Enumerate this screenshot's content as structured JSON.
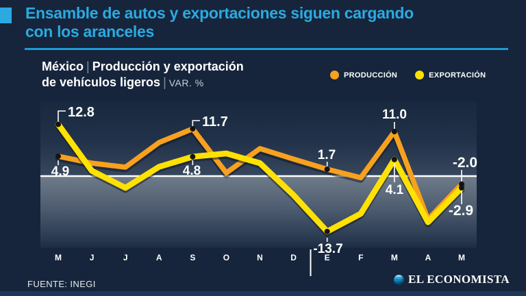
{
  "header": {
    "title_line1": "Ensamble de autos y exportaciones siguen cargando",
    "title_line2": "con los aranceles",
    "accent_color": "#2BAAE2"
  },
  "subtitle": {
    "region": "México",
    "separator": "|",
    "topic_line1": "Producción y exportación",
    "topic_line2": "de vehículos ligeros",
    "unit": "VAR. %"
  },
  "legend": [
    {
      "label": "PRODUCCIÓN",
      "color": "#F7A11F"
    },
    {
      "label": "EXPORTACIÓN",
      "color": "#FFE203"
    }
  ],
  "chart_data": {
    "type": "line",
    "title": "México | Producción y exportación de vehículos ligeros",
    "ylabel": "VAR. %",
    "categories": [
      "M",
      "J",
      "J",
      "A",
      "S",
      "O",
      "N",
      "D",
      "E",
      "F",
      "M",
      "A",
      "M"
    ],
    "year_divider_after_index": 7,
    "zero_line": true,
    "ylim": [
      -16,
      14
    ],
    "series": [
      {
        "name": "PRODUCCIÓN",
        "color": "#F7A11F",
        "values": [
          4.9,
          3.2,
          2.2,
          8.3,
          11.7,
          0.8,
          6.8,
          4.2,
          1.7,
          -0.4,
          11.0,
          -10.7,
          -2.0
        ],
        "labeled_points": [
          {
            "i": 0,
            "text": "4.9"
          },
          {
            "i": 4,
            "text": "11.7"
          },
          {
            "i": 8,
            "text": "1.7"
          },
          {
            "i": 10,
            "text": "11.0"
          },
          {
            "i": 12,
            "text": "-2.0"
          }
        ]
      },
      {
        "name": "EXPORTACIÓN",
        "color": "#FFE203",
        "values": [
          12.8,
          1.3,
          -2.9,
          2.3,
          4.8,
          5.6,
          3.2,
          -4.7,
          -13.7,
          -9.3,
          4.1,
          -11.4,
          -2.9
        ],
        "labeled_points": [
          {
            "i": 0,
            "text": "12.8"
          },
          {
            "i": 4,
            "text": "4.8"
          },
          {
            "i": 8,
            "text": "-13.7"
          },
          {
            "i": 10,
            "text": "4.1"
          },
          {
            "i": 12,
            "text": "-2.9"
          }
        ]
      }
    ]
  },
  "footer": {
    "source": "FUENTE: INEGI",
    "brand": "EL ECONOMISTA"
  }
}
